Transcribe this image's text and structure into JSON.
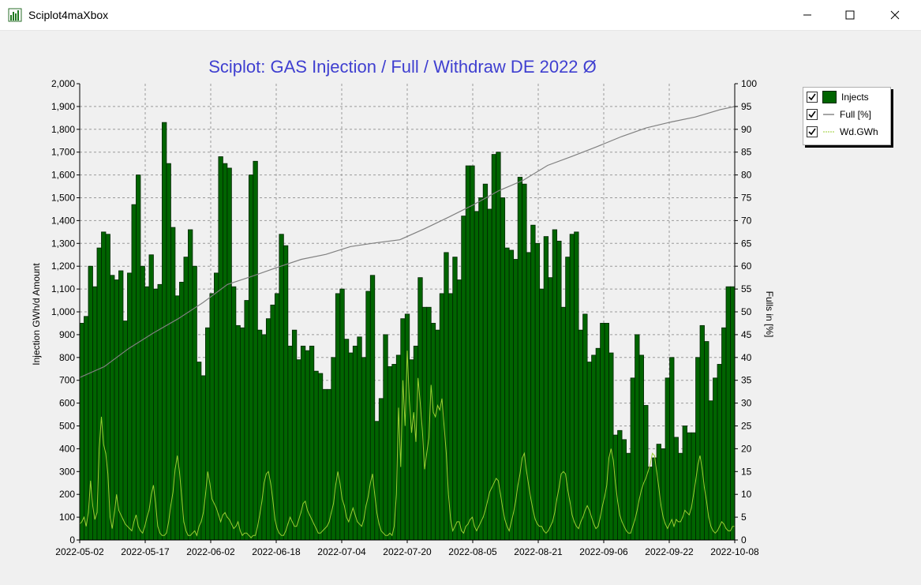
{
  "window": {
    "title": "Sciplot4maXbox",
    "icon": "bar-chart-icon",
    "controls": [
      "minimize-icon",
      "maximize-icon",
      "close-icon"
    ]
  },
  "legend": {
    "items": [
      {
        "label": "Injects",
        "checked": true,
        "color": "#006400"
      },
      {
        "label": "Full [%]",
        "checked": true,
        "color": "#808080"
      },
      {
        "label": "Wd.GWh",
        "checked": true,
        "color": "#9acd32"
      }
    ]
  },
  "chart_data": {
    "type": "bar",
    "title": "Sciplot: GAS Injection / Full / Withdraw DE 2022 Ø",
    "ylabel": "Injection GWh/d Amount",
    "y2label": "Fulls in [%]",
    "ylim": [
      0,
      2000
    ],
    "y2lim": [
      0,
      100
    ],
    "yticks": [
      "0",
      "100",
      "200",
      "300",
      "400",
      "500",
      "600",
      "700",
      "800",
      "900",
      "1,000",
      "1,100",
      "1,200",
      "1,300",
      "1,400",
      "1,500",
      "1,600",
      "1,700",
      "1,800",
      "1,900",
      "2,000"
    ],
    "y2ticks": [
      "0",
      "5",
      "10",
      "15",
      "20",
      "25",
      "30",
      "35",
      "40",
      "45",
      "50",
      "55",
      "60",
      "65",
      "70",
      "75",
      "80",
      "85",
      "90",
      "95",
      "100"
    ],
    "xtick_labels": [
      "2022-05-02",
      "2022-05-17",
      "2022-06-02",
      "2022-06-18",
      "2022-07-04",
      "2022-07-20",
      "2022-08-05",
      "2022-08-21",
      "2022-09-06",
      "2022-09-22",
      "2022-10-08"
    ],
    "grid": true,
    "legend_position": "top-right",
    "colors": {
      "bars": "#006400",
      "bar_edge": "#002400",
      "full": "#808080",
      "withdraw": "#9acd32",
      "title": "#3f3fd0"
    },
    "series": [
      {
        "name": "Injects",
        "type": "bar",
        "values": [
          950,
          980,
          1200,
          1110,
          1280,
          1350,
          1340,
          1160,
          1140,
          1180,
          960,
          1170,
          1470,
          1600,
          1200,
          1110,
          1250,
          1100,
          1120,
          1830,
          1650,
          1370,
          1070,
          1130,
          1240,
          1360,
          1200,
          780,
          720,
          930,
          1080,
          1170,
          1680,
          1650,
          1630,
          1110,
          940,
          930,
          1050,
          1600,
          1660,
          920,
          900,
          970,
          1030,
          1080,
          1340,
          1290,
          850,
          920,
          790,
          850,
          830,
          850,
          740,
          730,
          660,
          660,
          800,
          1080,
          1100,
          880,
          820,
          850,
          890,
          800,
          1090,
          1160,
          520,
          620,
          900,
          760,
          770,
          810,
          970,
          990,
          790,
          850,
          1150,
          1020,
          1020,
          950,
          920,
          1080,
          1260,
          1080,
          1240,
          1140,
          1420,
          1640,
          1640,
          1440,
          1500,
          1560,
          1450,
          1690,
          1700,
          1500,
          1280,
          1270,
          1230,
          1590,
          1560,
          1260,
          1380,
          1300,
          1100,
          1330,
          1150,
          1360,
          1310,
          1020,
          1240,
          1340,
          1350,
          920,
          990,
          780,
          810,
          840,
          950,
          950,
          820,
          460,
          480,
          440,
          380,
          710,
          900,
          810,
          590,
          320,
          360,
          420,
          400,
          710,
          800,
          450,
          380,
          500,
          470,
          470,
          800,
          940,
          870,
          610,
          710,
          770,
          930,
          1110,
          1110
        ]
      },
      {
        "name": "Full [%]",
        "type": "line",
        "axis": "right",
        "points": [
          [
            0,
            35.6
          ],
          [
            10,
            38
          ],
          [
            20,
            42
          ],
          [
            30,
            45.4
          ],
          [
            40,
            48.5
          ],
          [
            50,
            52
          ],
          [
            60,
            56
          ],
          [
            70,
            57.8
          ],
          [
            80,
            59.7
          ],
          [
            90,
            61.5
          ],
          [
            100,
            62.6
          ],
          [
            110,
            64.3
          ],
          [
            120,
            65.1
          ],
          [
            130,
            65.8
          ],
          [
            140,
            68.2
          ],
          [
            150,
            70.8
          ],
          [
            160,
            73.5
          ],
          [
            170,
            76.5
          ],
          [
            180,
            78.8
          ],
          [
            190,
            82.1
          ],
          [
            200,
            84.1
          ],
          [
            210,
            86.2
          ],
          [
            220,
            88.4
          ],
          [
            230,
            90.3
          ],
          [
            240,
            91.6
          ],
          [
            250,
            92.7
          ],
          [
            260,
            94.3
          ],
          [
            266,
            95
          ]
        ]
      },
      {
        "name": "Wd.GWh",
        "type": "line",
        "values": [
          70,
          80,
          100,
          60,
          120,
          260,
          150,
          90,
          120,
          400,
          540,
          420,
          380,
          290,
          100,
          50,
          120,
          200,
          130,
          110,
          90,
          70,
          60,
          50,
          40,
          80,
          110,
          60,
          40,
          30,
          60,
          100,
          130,
          200,
          240,
          160,
          60,
          30,
          20,
          20,
          30,
          80,
          150,
          210,
          310,
          370,
          300,
          190,
          80,
          40,
          20,
          20,
          30,
          40,
          20,
          60,
          80,
          120,
          200,
          300,
          250,
          180,
          160,
          140,
          110,
          80,
          110,
          120,
          100,
          90,
          70,
          50,
          60,
          80,
          40,
          20,
          30,
          30,
          20,
          10,
          20,
          20,
          60,
          110,
          170,
          250,
          290,
          300,
          250,
          180,
          90,
          50,
          30,
          20,
          20,
          40,
          70,
          100,
          80,
          60,
          60,
          90,
          120,
          160,
          170,
          130,
          110,
          90,
          70,
          50,
          30,
          30,
          40,
          50,
          60,
          80,
          120,
          160,
          240,
          300,
          250,
          180,
          150,
          100,
          80,
          110,
          140,
          110,
          80,
          70,
          60,
          90,
          150,
          190,
          250,
          290,
          200,
          120,
          70,
          40,
          30,
          20,
          20,
          30,
          20,
          60,
          200,
          580,
          320,
          700,
          500,
          830,
          610,
          470,
          560,
          430,
          710,
          600,
          480,
          310,
          380,
          450,
          680,
          560,
          540,
          590,
          570,
          620,
          500,
          380,
          200,
          90,
          40,
          60,
          80,
          80,
          40,
          30,
          60,
          70,
          90,
          100,
          60,
          40,
          60,
          80,
          100,
          130,
          170,
          210,
          230,
          250,
          270,
          260,
          200,
          140,
          90,
          60,
          40,
          80,
          120,
          170,
          240,
          290,
          360,
          380,
          300,
          240,
          180,
          130,
          90,
          70,
          60,
          60,
          40,
          30,
          40,
          60,
          80,
          120,
          180,
          230,
          290,
          300,
          290,
          220,
          170,
          110,
          80,
          60,
          50,
          80,
          100,
          130,
          150,
          130,
          100,
          70,
          50,
          60,
          100,
          150,
          190,
          240,
          360,
          400,
          350,
          250,
          170,
          110,
          80,
          60,
          40,
          30,
          30,
          60,
          90,
          130,
          180,
          220,
          250,
          270,
          300,
          330,
          380,
          370,
          300,
          230,
          150,
          100,
          70,
          50,
          70,
          90,
          60,
          90,
          80,
          80,
          100,
          130,
          120,
          110,
          140,
          200,
          260,
          330,
          370,
          310,
          230,
          170,
          100,
          60,
          40,
          30,
          40,
          60,
          80,
          70,
          50,
          40,
          40,
          60,
          60
        ]
      }
    ]
  }
}
